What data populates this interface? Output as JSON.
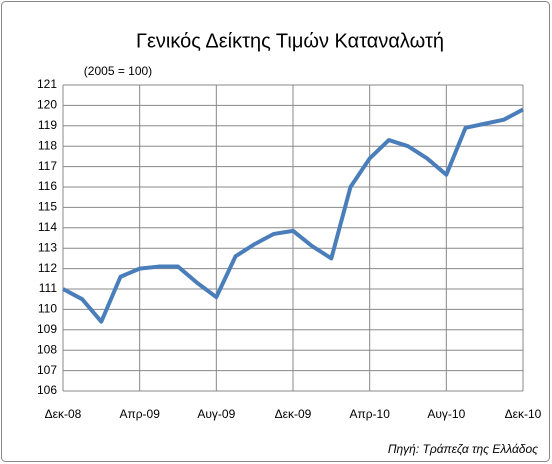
{
  "chart_data": {
    "type": "line",
    "title": "Γενικός Δείκτης Τιμών Καταναλωτή",
    "subtitle": "(2005 = 100)",
    "source": "Πηγή: Τράπεζα της Ελλάδος",
    "categories": [
      "Δεκ-08",
      null,
      null,
      null,
      "Απρ-09",
      null,
      null,
      null,
      "Αυγ-09",
      null,
      null,
      null,
      "Δεκ-09",
      null,
      null,
      null,
      "Απρ-10",
      null,
      null,
      null,
      "Αυγ-10",
      null,
      null,
      null,
      "Δεκ-10"
    ],
    "values": [
      111.0,
      110.5,
      109.4,
      111.6,
      112.0,
      112.1,
      112.1,
      111.3,
      110.6,
      112.6,
      113.2,
      113.7,
      113.85,
      113.1,
      112.5,
      116.0,
      117.4,
      118.3,
      118.0,
      117.4,
      116.6,
      118.9,
      119.1,
      119.3,
      119.8
    ],
    "color": "#4a7ebb",
    "ylim": [
      106,
      121
    ],
    "yticks": [
      106,
      107,
      108,
      109,
      110,
      111,
      112,
      113,
      114,
      115,
      116,
      117,
      118,
      119,
      120,
      121
    ],
    "grid": true
  }
}
